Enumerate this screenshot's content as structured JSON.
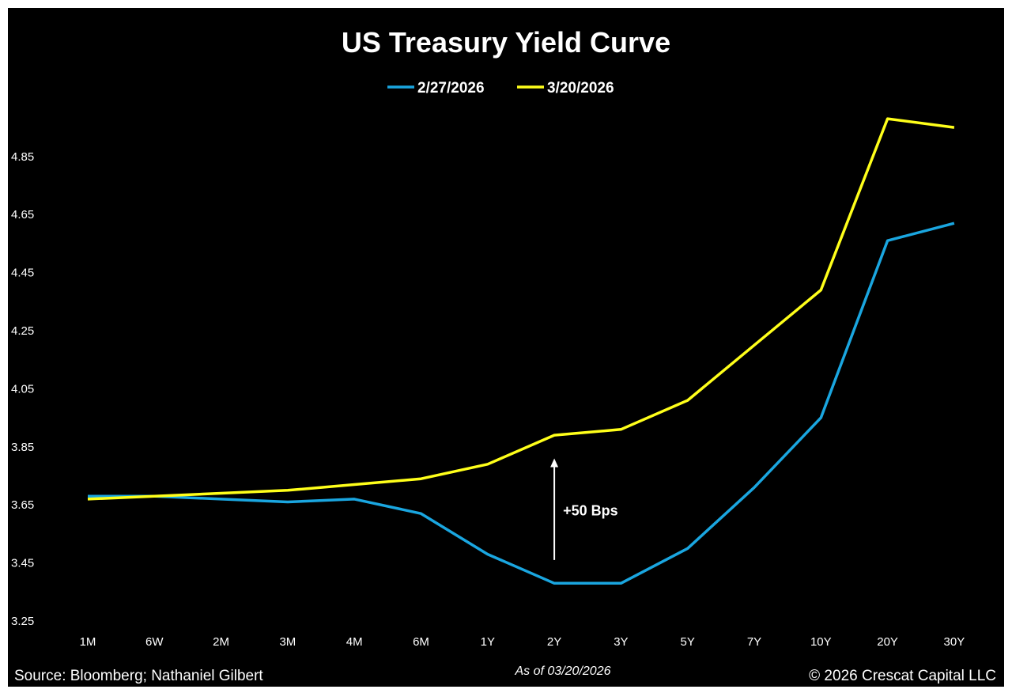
{
  "chart_data": {
    "type": "line",
    "title": "US Treasury Yield Curve",
    "xlabel": "",
    "ylabel": "",
    "categories": [
      "1M",
      "6W",
      "2M",
      "3M",
      "4M",
      "6M",
      "1Y",
      "2Y",
      "3Y",
      "5Y",
      "7Y",
      "10Y",
      "20Y",
      "30Y"
    ],
    "yticks": [
      "3.25",
      "3.45",
      "3.65",
      "3.85",
      "4.05",
      "4.25",
      "4.45",
      "4.65",
      "4.85"
    ],
    "ylim": [
      3.25,
      5.0
    ],
    "grid": false,
    "legend_position": "top-center",
    "series": [
      {
        "name": "2/27/2026",
        "color": "#1aa6e0",
        "values": [
          3.68,
          3.68,
          3.67,
          3.66,
          3.67,
          3.62,
          3.48,
          3.38,
          3.38,
          3.5,
          3.71,
          3.95,
          4.56,
          4.62
        ]
      },
      {
        "name": "3/20/2026",
        "color": "#ffff1a",
        "values": [
          3.67,
          3.68,
          3.69,
          3.7,
          3.72,
          3.74,
          3.79,
          3.89,
          3.91,
          4.01,
          4.2,
          4.39,
          4.98,
          4.95
        ]
      }
    ],
    "annotations": [
      {
        "text": "+50 Bps",
        "at_category": "2Y",
        "from": 3.46,
        "to": 3.81
      }
    ]
  },
  "footer": {
    "source": "Source: Bloomberg; Nathaniel Gilbert",
    "as_of": "As of 03/20/2026",
    "copyright": "© 2026 Crescat Capital LLC"
  }
}
